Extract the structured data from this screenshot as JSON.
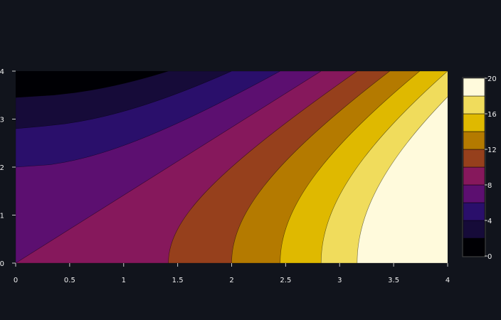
{
  "chart_data": {
    "type": "contour",
    "title": "",
    "xlabel": "",
    "ylabel": "",
    "xlim": [
      0,
      4
    ],
    "ylim": [
      0,
      4
    ],
    "x_ticks": [
      0,
      0.5,
      1,
      1.5,
      2,
      2.5,
      3,
      3.5,
      4
    ],
    "x_tick_labels": [
      "0",
      "0.5",
      "1",
      "1.5",
      "2",
      "2.5",
      "3",
      "3.5",
      "4"
    ],
    "y_ticks": [
      0,
      1,
      2,
      3,
      4
    ],
    "y_tick_labels": [
      "0",
      "1",
      "2",
      "3",
      "4"
    ],
    "colorbar": {
      "range": [
        0,
        20
      ],
      "ticks": [
        0,
        4,
        8,
        12,
        16,
        20
      ],
      "tick_labels": [
        "0",
        "4",
        "8",
        "12",
        "16",
        "20"
      ],
      "placement": "right"
    },
    "levels": [
      0,
      2,
      4,
      6,
      8,
      10,
      12,
      14,
      16,
      18,
      20
    ],
    "colors": [
      "#000004",
      "#160b39",
      "#2a0f6b",
      "#5c0f70",
      "#86185c",
      "#96401c",
      "#b47a00",
      "#dfb900",
      "#f0dc5c",
      "#fffadc"
    ],
    "field": "approx z = x^2 - 0.5*y^2 + 8 on grid x,y in [0,4]",
    "grid": false,
    "background": "#11141c",
    "contour_line_color": "#000000"
  }
}
